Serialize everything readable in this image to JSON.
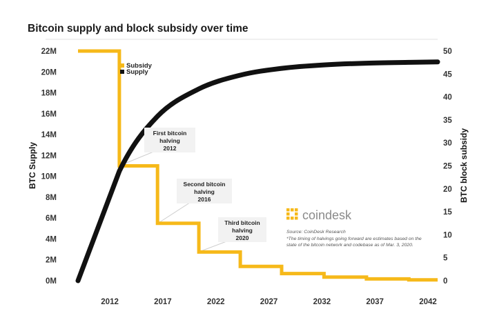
{
  "chart_data": {
    "type": "line",
    "title": "Bitcoin supply and block subsidy over time",
    "ylabel": "BTC Supply",
    "ylabel_right": "BTC block subsidy",
    "x_ticks": [
      "2012",
      "2017",
      "2022",
      "2027",
      "2032",
      "2037",
      "2042"
    ],
    "y_ticks_left": [
      "0M",
      "2M",
      "4M",
      "6M",
      "8M",
      "10M",
      "12M",
      "14M",
      "16M",
      "18M",
      "20M",
      "22M"
    ],
    "y_ticks_right": [
      "0",
      "5",
      "10",
      "15",
      "20",
      "25",
      "30",
      "35",
      "40",
      "45",
      "50"
    ],
    "xlim": [
      2009,
      2042
    ],
    "ylim_left": [
      0,
      22000000
    ],
    "ylim_right": [
      0,
      50
    ],
    "legend_position": "top-left",
    "series": [
      {
        "name": "Subsidy",
        "axis": "right",
        "color": "#f6b91a",
        "x": [
          2009,
          2012.9,
          2012.9,
          2016.5,
          2016.5,
          2020.4,
          2020.4,
          2024.3,
          2024.3,
          2028.2,
          2028.2,
          2032.2,
          2032.2,
          2036.2,
          2036.2,
          2040.2,
          2040.2,
          2044.1
        ],
        "y": [
          50,
          50,
          25,
          25,
          12.5,
          12.5,
          6.25,
          6.25,
          3.125,
          3.125,
          1.5625,
          1.5625,
          0.78125,
          0.78125,
          0.390625,
          0.390625,
          0.1953125,
          0.1953125
        ]
      },
      {
        "name": "Supply",
        "axis": "left",
        "color": "#111111",
        "x": [
          2009,
          2012.9,
          2016.5,
          2020.4,
          2024.3,
          2028.2,
          2032.2,
          2036.2,
          2040.2,
          2044.1
        ],
        "y": [
          0,
          10500000,
          15750000,
          18375000,
          19687500,
          20343750,
          20671875,
          20835937,
          20917968,
          20958984
        ]
      }
    ],
    "annotations": [
      {
        "lines": [
          "First bitcoin",
          "halving",
          "2012"
        ],
        "x": 2012.9,
        "y": 25
      },
      {
        "lines": [
          "Second bitcoin",
          "halving",
          "2016"
        ],
        "x": 2016.5,
        "y": 12.5
      },
      {
        "lines": [
          "Third bitcoin",
          "halving",
          "2020"
        ],
        "x": 2020.4,
        "y": 6.25
      }
    ],
    "brand": "coindesk",
    "source": "Source: CoinDesk Research",
    "footnote": [
      "*The timing of halvings going forward are estimates based on the",
      "state of the bitcoin network and codebase as of Mar. 3, 2020."
    ],
    "grid": false
  },
  "colors": {
    "subsidy": "#f6b91a",
    "supply": "#111111",
    "brand_accent": "#f6b91a",
    "guide": "#e2e2e2"
  }
}
